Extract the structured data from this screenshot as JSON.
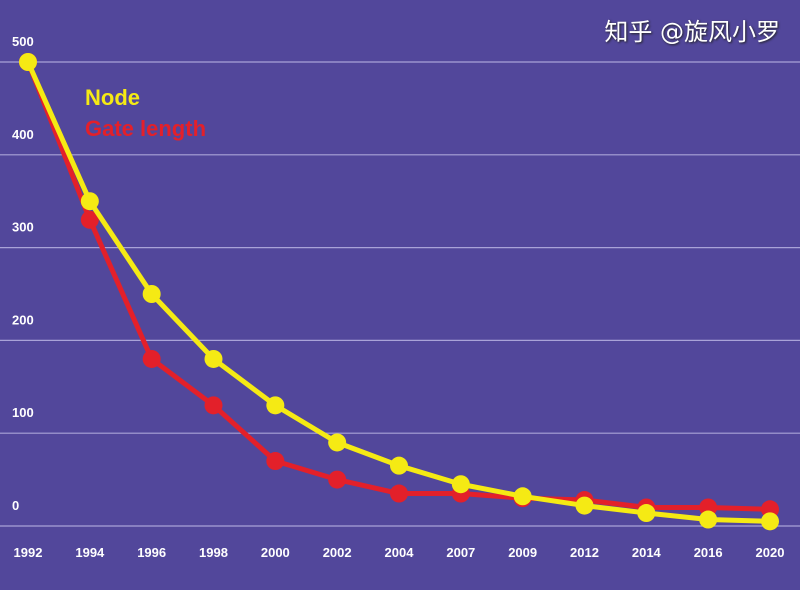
{
  "chart_data": {
    "type": "line",
    "categories": [
      "1992",
      "1994",
      "1996",
      "1998",
      "2000",
      "2002",
      "2004",
      "2007",
      "2009",
      "2012",
      "2014",
      "2016",
      "2020"
    ],
    "ylim": [
      0,
      500
    ],
    "yticks": [
      0,
      100,
      200,
      300,
      400,
      500
    ],
    "grid": true,
    "legend_placement": "top-left",
    "series": [
      {
        "name": "Node",
        "color": "#f5ea14",
        "values": [
          500,
          350,
          250,
          180,
          130,
          90,
          65,
          45,
          32,
          22,
          14,
          7,
          5
        ]
      },
      {
        "name": "Gate length",
        "color": "#e3202a",
        "values": [
          500,
          330,
          180,
          130,
          70,
          50,
          35,
          35,
          30,
          28,
          20,
          20,
          18
        ]
      }
    ],
    "background": "#52479b",
    "gridline_color": "#a9a3d8"
  },
  "watermark": "知乎 @旋风小罗"
}
